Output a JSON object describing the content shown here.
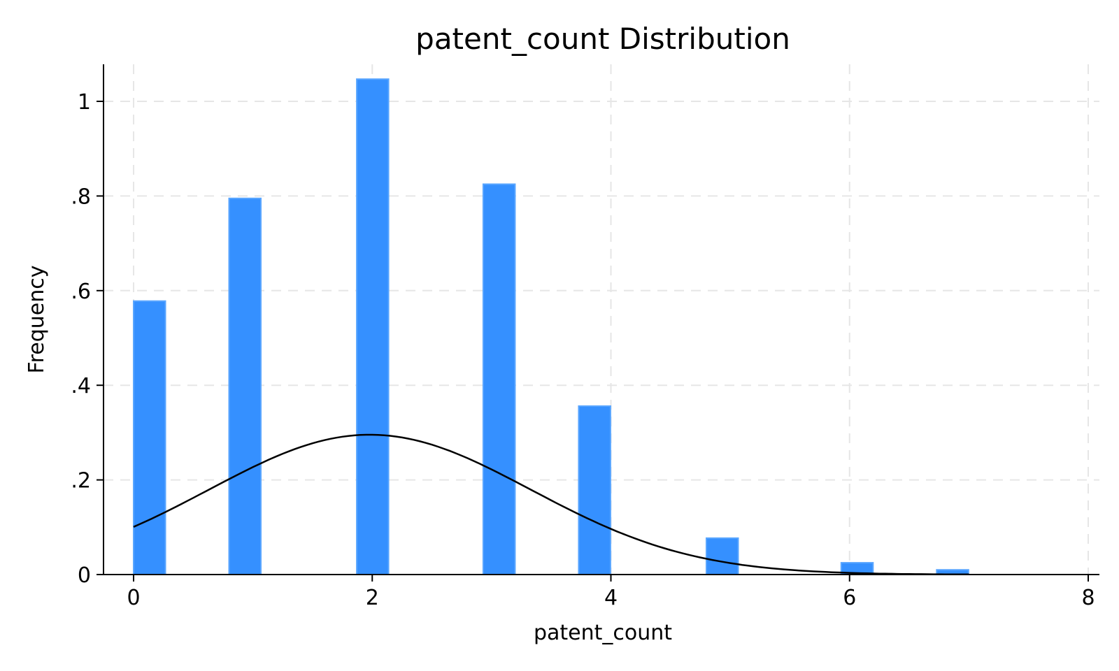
{
  "chart_data": {
    "type": "bar",
    "title": "patent_count Distribution",
    "xlabel": "patent_count",
    "ylabel": "Frequency",
    "xlim": [
      -0.25,
      8.1
    ],
    "ylim": [
      0,
      1.08
    ],
    "xticks": [
      {
        "value": 0,
        "label": "0"
      },
      {
        "value": 2,
        "label": "2"
      },
      {
        "value": 4,
        "label": "4"
      },
      {
        "value": 6,
        "label": "6"
      },
      {
        "value": 8,
        "label": "8"
      }
    ],
    "yticks": [
      {
        "value": 0,
        "label": "0"
      },
      {
        "value": 0.2,
        "label": ".2"
      },
      {
        "value": 0.4,
        "label": ".4"
      },
      {
        "value": 0.6,
        "label": ".6"
      },
      {
        "value": 0.8,
        "label": ".8"
      },
      {
        "value": 1,
        "label": "1"
      }
    ],
    "grid": true,
    "bin_width": 0.2667,
    "bars": [
      {
        "x0": 0.0,
        "value": 0.578
      },
      {
        "x0": 0.8,
        "value": 0.795
      },
      {
        "x0": 1.87,
        "value": 1.047
      },
      {
        "x0": 2.93,
        "value": 0.825
      },
      {
        "x0": 3.73,
        "value": 0.356
      },
      {
        "x0": 4.8,
        "value": 0.077
      },
      {
        "x0": 5.93,
        "value": 0.025
      },
      {
        "x0": 6.73,
        "value": 0.01
      }
    ],
    "density_curve": {
      "description": "normal density overlay",
      "mean": 1.98,
      "sd": 1.35,
      "x_start": 0.0,
      "x_end": 7.0
    },
    "colors": {
      "bar_fill": "#3590ff",
      "bar_edge": "#5aa6ff",
      "curve": "#000000"
    }
  }
}
